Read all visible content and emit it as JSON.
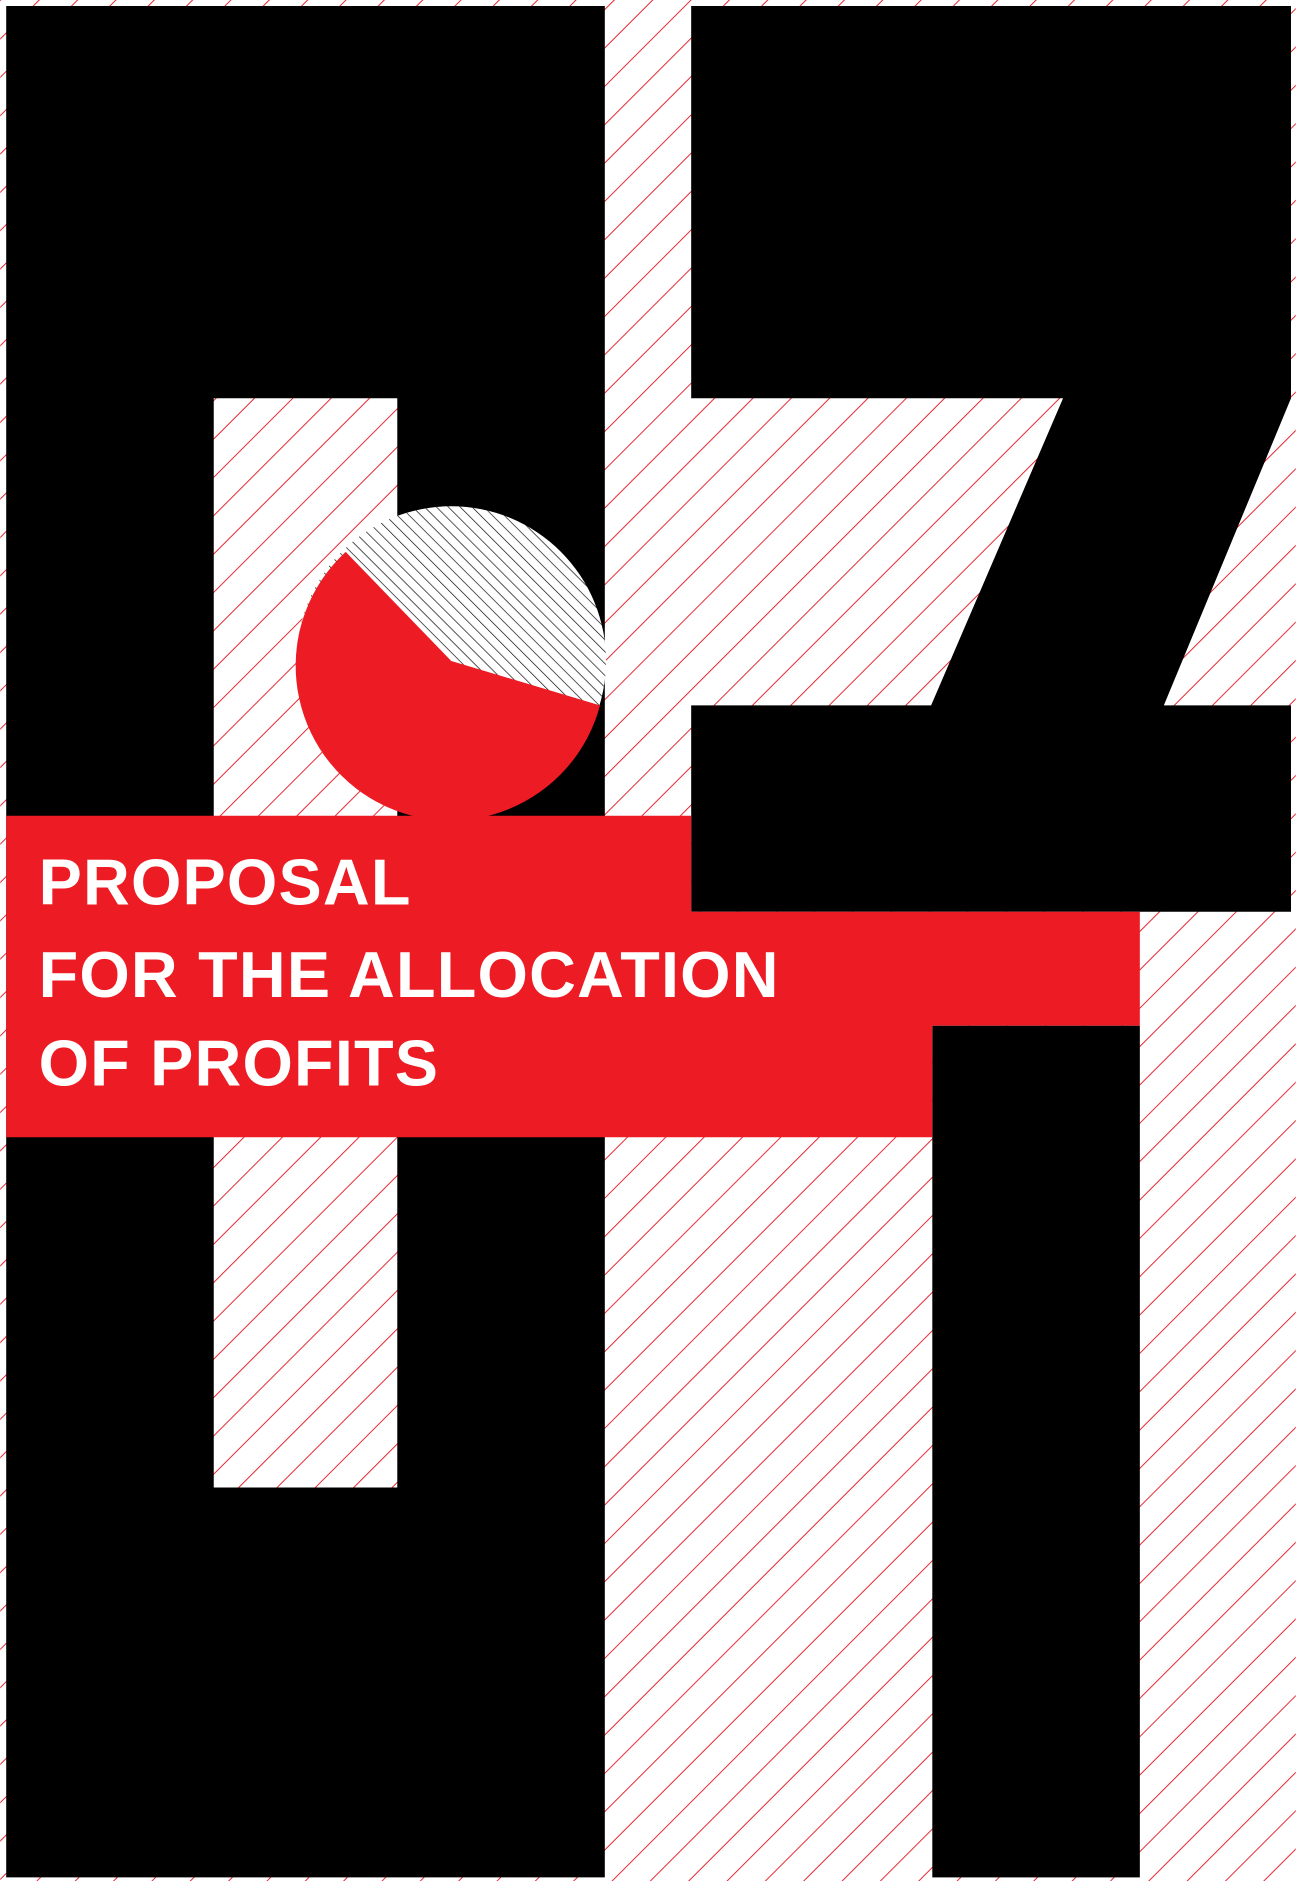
{
  "title_lines": [
    "PROPOSAL",
    "FOR THE ALLOCATION",
    "OF PROFITS"
  ]
}
